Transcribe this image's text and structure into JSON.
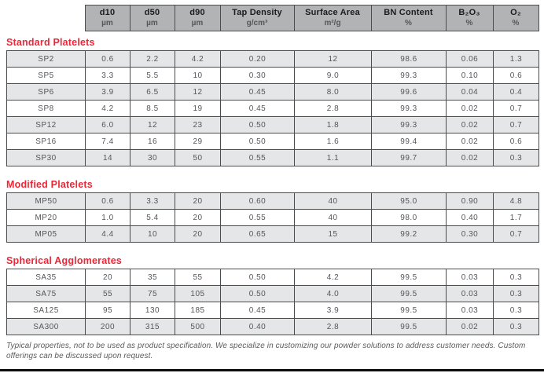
{
  "colors": {
    "accent_red": "#ee2737",
    "header_background": "#b2b3b5",
    "row_shade": "#e5e6e7",
    "border": "#4b4c4e",
    "text": "#55565a",
    "bottom_bar": "#0d0d0d"
  },
  "table": {
    "columns": [
      {
        "label": "d10",
        "unit": "µm"
      },
      {
        "label": "d50",
        "unit": "µm"
      },
      {
        "label": "d90",
        "unit": "µm"
      },
      {
        "label": "Tap Density",
        "unit": "g/cm³"
      },
      {
        "label": "Surface Area",
        "unit": "m²/g"
      },
      {
        "label": "BN Content",
        "unit": "%"
      },
      {
        "label": "B₂O₃",
        "unit": "%"
      },
      {
        "label": "O₂",
        "unit": "%"
      }
    ],
    "sections": [
      {
        "title": "Standard Platelets",
        "first_row_shaded": true,
        "rows": [
          [
            "SP2",
            "0.6",
            "2.2",
            "4.2",
            "0.20",
            "12",
            "98.6",
            "0.06",
            "1.3"
          ],
          [
            "SP5",
            "3.3",
            "5.5",
            "10",
            "0.30",
            "9.0",
            "99.3",
            "0.10",
            "0.6"
          ],
          [
            "SP6",
            "3.9",
            "6.5",
            "12",
            "0.45",
            "8.0",
            "99.6",
            "0.04",
            "0.4"
          ],
          [
            "SP8",
            "4.2",
            "8.5",
            "19",
            "0.45",
            "2.8",
            "99.3",
            "0.02",
            "0.7"
          ],
          [
            "SP12",
            "6.0",
            "12",
            "23",
            "0.50",
            "1.8",
            "99.3",
            "0.02",
            "0.7"
          ],
          [
            "SP16",
            "7.4",
            "16",
            "29",
            "0.50",
            "1.6",
            "99.4",
            "0.02",
            "0.6"
          ],
          [
            "SP30",
            "14",
            "30",
            "50",
            "0.55",
            "1.1",
            "99.7",
            "0.02",
            "0.3"
          ]
        ]
      },
      {
        "title": "Modified Platelets",
        "first_row_shaded": true,
        "rows": [
          [
            "MP50",
            "0.6",
            "3.3",
            "20",
            "0.60",
            "40",
            "95.0",
            "0.90",
            "4.8"
          ],
          [
            "MP20",
            "1.0",
            "5.4",
            "20",
            "0.55",
            "40",
            "98.0",
            "0.40",
            "1.7"
          ],
          [
            "MP05",
            "4.4",
            "10",
            "20",
            "0.65",
            "15",
            "99.2",
            "0.30",
            "0.7"
          ]
        ]
      },
      {
        "title": "Spherical Agglomerates",
        "first_row_shaded": false,
        "rows": [
          [
            "SA35",
            "20",
            "35",
            "55",
            "0.50",
            "4.2",
            "99.5",
            "0.03",
            "0.3"
          ],
          [
            "SA75",
            "55",
            "75",
            "105",
            "0.50",
            "4.0",
            "99.5",
            "0.03",
            "0.3"
          ],
          [
            "SA125",
            "95",
            "130",
            "185",
            "0.45",
            "3.9",
            "99.5",
            "0.03",
            "0.3"
          ],
          [
            "SA300",
            "200",
            "315",
            "500",
            "0.40",
            "2.8",
            "99.5",
            "0.02",
            "0.3"
          ]
        ]
      }
    ]
  },
  "footer": {
    "note": "Typical properties, not to be used as product specification. We specialize in customizing our powder solutions to address customer needs. Custom offerings can be discussed upon request."
  }
}
